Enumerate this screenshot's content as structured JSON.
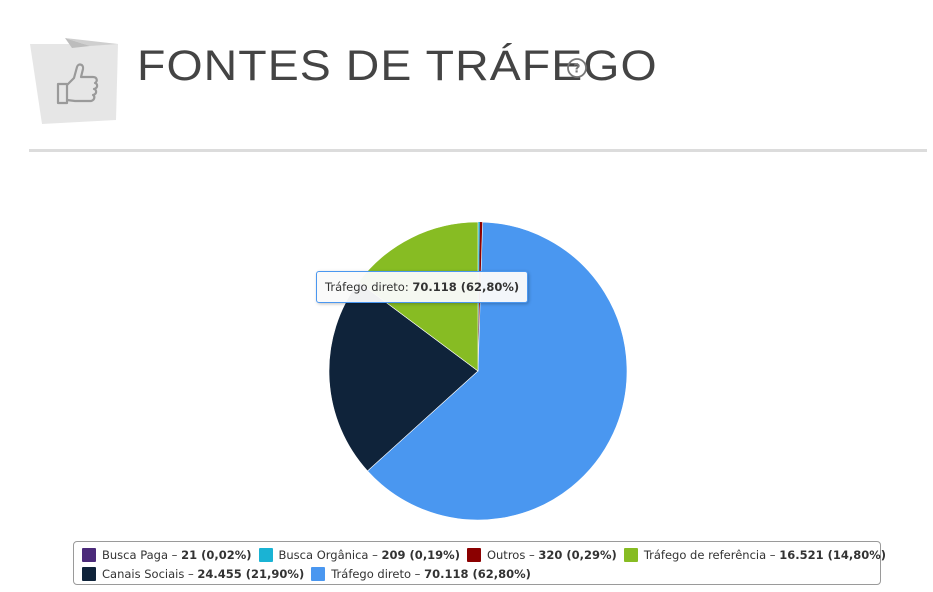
{
  "header": {
    "title": "FONTES DE TRÁFEGO",
    "icon": "thumbs-up-icon",
    "help_icon": "question-circle-icon"
  },
  "tooltip": {
    "label": "Tráfego direto:",
    "value": "70.118 (62,80%)"
  },
  "legend": {
    "rows": [
      [
        {
          "label": "Busca Paga",
          "value": "21 (0,02%)",
          "color": "#4b2a7a"
        },
        {
          "label": "Busca Orgânica",
          "value": "209 (0,19%)",
          "color": "#1ab3d4"
        },
        {
          "label": "Outros",
          "value": "320 (0,29%)",
          "color": "#8b0000"
        },
        {
          "label": "Tráfego de referência",
          "value": "16.521 (14,80%)",
          "color": "#87bc23"
        }
      ],
      [
        {
          "label": "Canais Sociais",
          "value": "24.455 (21,90%)",
          "color": "#0f233a"
        },
        {
          "label": "Tráfego direto",
          "value": "70.118 (62,80%)",
          "color": "#4a97f0"
        }
      ]
    ]
  },
  "chart_data": {
    "type": "pie",
    "categories": [
      "Busca Paga",
      "Busca Orgânica",
      "Outros",
      "Tráfego direto",
      "Canais Sociais",
      "Tráfego de referência"
    ],
    "values": [
      21,
      209,
      320,
      70118,
      24455,
      16521
    ],
    "percent_labels": [
      "0,02%",
      "0,19%",
      "0,29%",
      "62,80%",
      "21,90%",
      "14,80%"
    ],
    "colors": [
      "#4b2a7a",
      "#1ab3d4",
      "#8b0000",
      "#4a97f0",
      "#0f233a",
      "#87bc23"
    ],
    "title": "",
    "legend_position": "bottom",
    "highlighted": "Tráfego direto"
  }
}
